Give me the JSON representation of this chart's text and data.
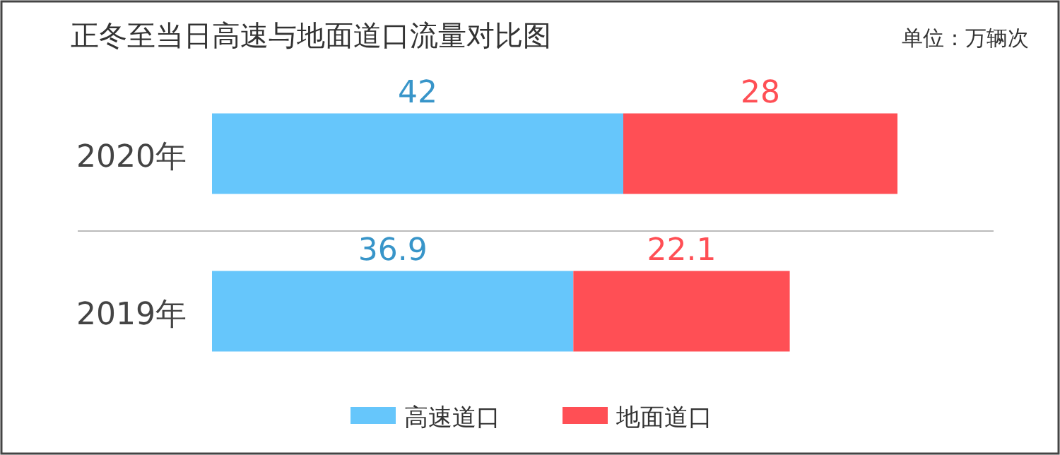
{
  "chart_data": {
    "type": "bar",
    "orientation": "horizontal",
    "stacked": true,
    "title": "正冬至当日高速与地面道口流量对比图",
    "annotations": [
      "单位：万辆次"
    ],
    "categories": [
      "2020年",
      "2019年"
    ],
    "series": [
      {
        "name": "高速道口",
        "color": "#66c6fb",
        "values": [
          42,
          36.9
        ]
      },
      {
        "name": "地面道口",
        "color": "#ff4f55",
        "values": [
          28,
          22.1
        ]
      }
    ],
    "data_labels": true,
    "legend": "bottom"
  }
}
